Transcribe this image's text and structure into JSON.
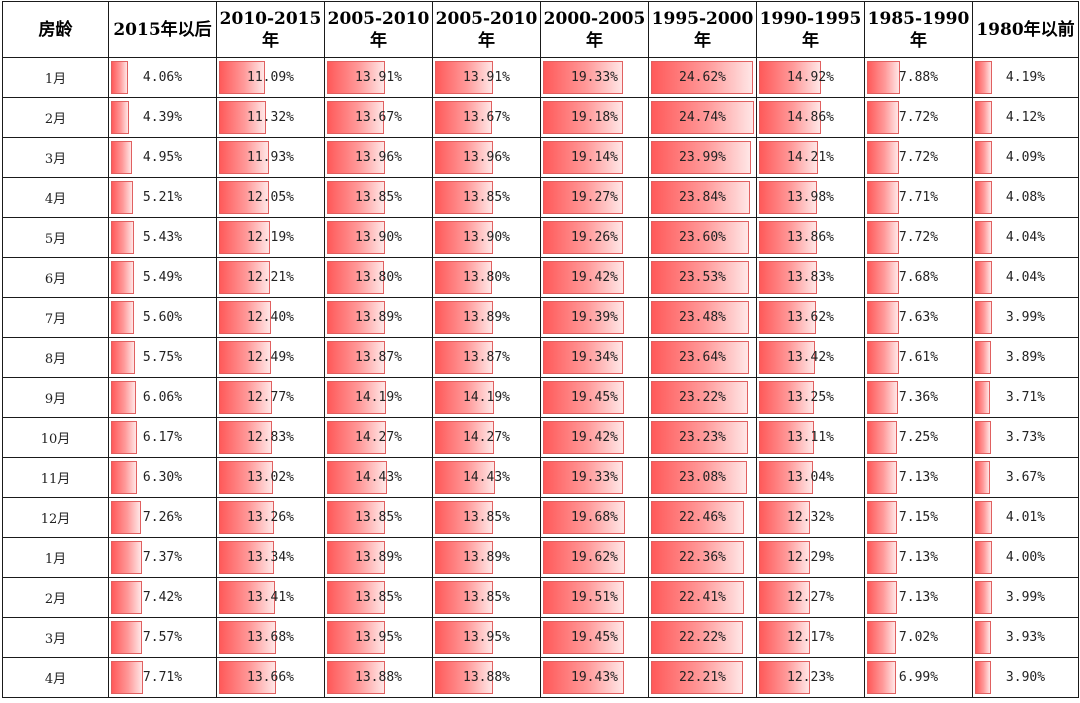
{
  "table": {
    "headers": [
      "房龄",
      "2015年以后",
      "2010-2015年",
      "2005-2010年",
      "2005-2010年",
      "2000-2005年",
      "1995-2000年",
      "1990-1995年",
      "1985-1990年",
      "1980年以前"
    ],
    "bar_max_percent": 25,
    "rows": [
      {
        "label": "1月",
        "values": [
          "4.06%",
          "11.09%",
          "13.91%",
          "13.91%",
          "19.33%",
          "24.62%",
          "14.92%",
          "7.88%",
          "4.19%"
        ]
      },
      {
        "label": "2月",
        "values": [
          "4.39%",
          "11.32%",
          "13.67%",
          "13.67%",
          "19.18%",
          "24.74%",
          "14.86%",
          "7.72%",
          "4.12%"
        ]
      },
      {
        "label": "3月",
        "values": [
          "4.95%",
          "11.93%",
          "13.96%",
          "13.96%",
          "19.14%",
          "23.99%",
          "14.21%",
          "7.72%",
          "4.09%"
        ]
      },
      {
        "label": "4月",
        "values": [
          "5.21%",
          "12.05%",
          "13.85%",
          "13.85%",
          "19.27%",
          "23.84%",
          "13.98%",
          "7.71%",
          "4.08%"
        ]
      },
      {
        "label": "5月",
        "values": [
          "5.43%",
          "12.19%",
          "13.90%",
          "13.90%",
          "19.26%",
          "23.60%",
          "13.86%",
          "7.72%",
          "4.04%"
        ]
      },
      {
        "label": "6月",
        "values": [
          "5.49%",
          "12.21%",
          "13.80%",
          "13.80%",
          "19.42%",
          "23.53%",
          "13.83%",
          "7.68%",
          "4.04%"
        ]
      },
      {
        "label": "7月",
        "values": [
          "5.60%",
          "12.40%",
          "13.89%",
          "13.89%",
          "19.39%",
          "23.48%",
          "13.62%",
          "7.63%",
          "3.99%"
        ]
      },
      {
        "label": "8月",
        "values": [
          "5.75%",
          "12.49%",
          "13.87%",
          "13.87%",
          "19.34%",
          "23.64%",
          "13.42%",
          "7.61%",
          "3.89%"
        ]
      },
      {
        "label": "9月",
        "values": [
          "6.06%",
          "12.77%",
          "14.19%",
          "14.19%",
          "19.45%",
          "23.22%",
          "13.25%",
          "7.36%",
          "3.71%"
        ]
      },
      {
        "label": "10月",
        "values": [
          "6.17%",
          "12.83%",
          "14.27%",
          "14.27%",
          "19.42%",
          "23.23%",
          "13.11%",
          "7.25%",
          "3.73%"
        ]
      },
      {
        "label": "11月",
        "values": [
          "6.30%",
          "13.02%",
          "14.43%",
          "14.43%",
          "19.33%",
          "23.08%",
          "13.04%",
          "7.13%",
          "3.67%"
        ]
      },
      {
        "label": "12月",
        "values": [
          "7.26%",
          "13.26%",
          "13.85%",
          "13.85%",
          "19.68%",
          "22.46%",
          "12.32%",
          "7.15%",
          "4.01%"
        ]
      },
      {
        "label": "1月",
        "values": [
          "7.37%",
          "13.34%",
          "13.89%",
          "13.89%",
          "19.62%",
          "22.36%",
          "12.29%",
          "7.13%",
          "4.00%"
        ]
      },
      {
        "label": "2月",
        "values": [
          "7.42%",
          "13.41%",
          "13.85%",
          "13.85%",
          "19.51%",
          "22.41%",
          "12.27%",
          "7.13%",
          "3.99%"
        ]
      },
      {
        "label": "3月",
        "values": [
          "7.57%",
          "13.68%",
          "13.95%",
          "13.95%",
          "19.45%",
          "22.22%",
          "12.17%",
          "7.02%",
          "3.93%"
        ]
      },
      {
        "label": "4月",
        "values": [
          "7.71%",
          "13.66%",
          "13.88%",
          "13.88%",
          "19.43%",
          "22.21%",
          "12.23%",
          "6.99%",
          "3.90%"
        ]
      }
    ]
  }
}
